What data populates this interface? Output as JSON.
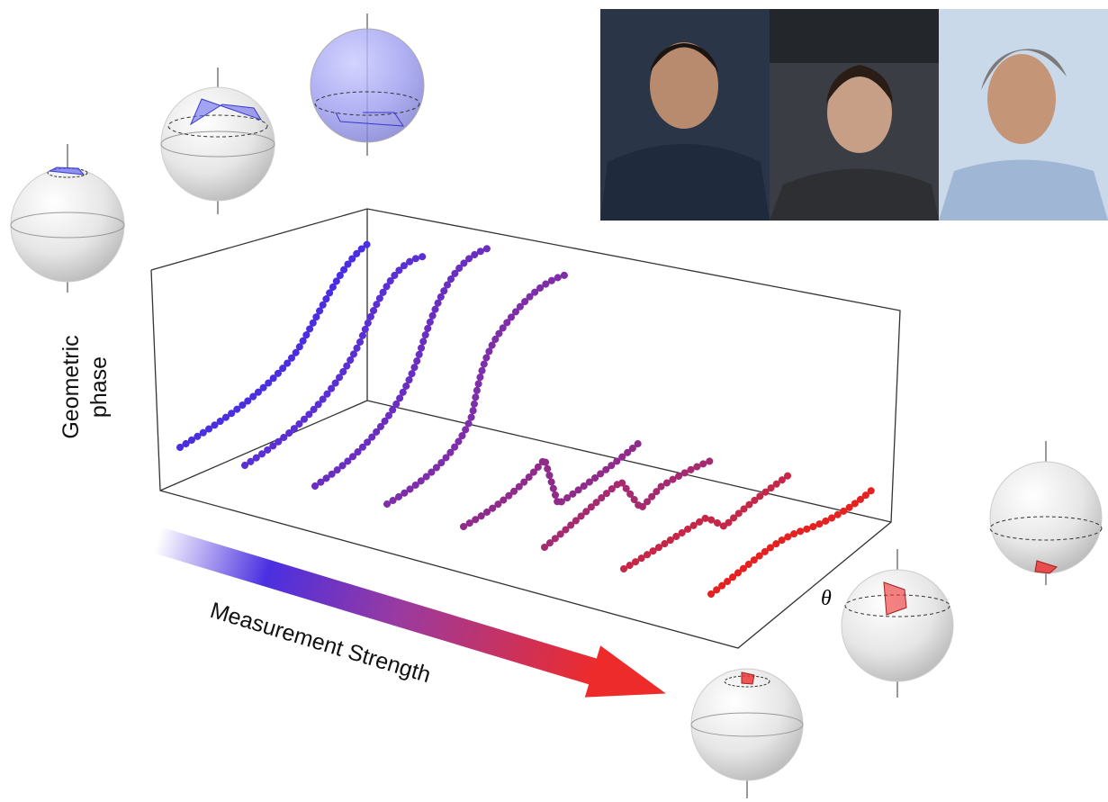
{
  "axis_labels": {
    "vertical": [
      "Geometric",
      "phase"
    ],
    "arrow": "Measurement Strength",
    "depth": "θ"
  }
}
